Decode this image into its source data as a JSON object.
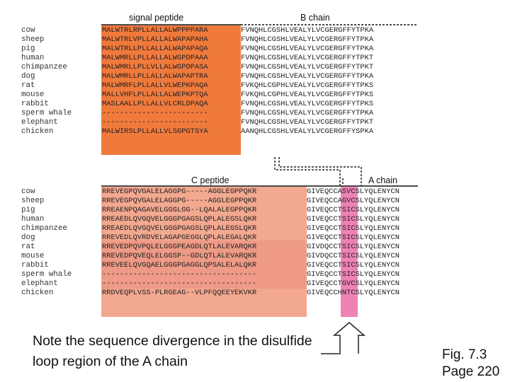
{
  "headers": {
    "signal_peptide": "signal peptide",
    "b_chain": "B chain",
    "c_peptide": "C peptide",
    "a_chain": "A chain"
  },
  "colors": {
    "signal_bg": "#f07a3c",
    "c_peptide_bg": "#f3a890",
    "c_peptide_bg_dark": "#ee8c78",
    "disulfide_bg": "#ee82b4"
  },
  "top_block": [
    {
      "species": "cow",
      "signal": "MALWTRLRPLLALLALWPPPPARA",
      "b": "FVNQHLCGSHLVEALYLVCGERGFFYTPKA"
    },
    {
      "species": "sheep",
      "signal": "MALWTRLVPLLALLALWAPAPAHA",
      "b": "FVNQHLCGSHLVEALYLVCGERGFFYTPKA"
    },
    {
      "species": "pig",
      "signal": "MALWTRLLPLLALLALWAPAPAQA",
      "b": "FVNQHLCGSHLVEALYLVCGERGFFYTPKA"
    },
    {
      "species": "human",
      "signal": "MALWMRLLPLLALLALWGPDPAAA",
      "b": "FVNQHLCGSHLVEALYLVCGERGFFYTPKT"
    },
    {
      "species": "chimpanzee",
      "signal": "MALWMRLLPLLVLLALWGPDPASA",
      "b": "FVNQHLCGSHLVEALYLVCGERGFFYTPKT"
    },
    {
      "species": "dog",
      "signal": "MALWMRLLPLLALLALWAPAPTRA",
      "b": "FVNQHLCGSHLVEALYLVCGERGFFYTPKA"
    },
    {
      "species": "rat",
      "signal": "MALWMRFLPLLALLVLWEPKPAQA",
      "b": "FVKQHLCGPHLVEALYLVCGERGFFYTPKS"
    },
    {
      "species": "mouse",
      "signal": "MALLVHFLPLLALLALWEPKPTQA",
      "b": "FVKQHLCGPHLVEALYLVCGERGFFYTPKS"
    },
    {
      "species": "rabbit",
      "signal": "MASLAALLPLLALLVLCRLDPAQA",
      "b": "FVNQHLCGSHLVEALYLVCGERGFFYTPKS"
    },
    {
      "species": "sperm whale",
      "signal": "------------------------",
      "b": "FVNQHLCGSHLVEALYLVCGERGFFYTPKA"
    },
    {
      "species": "elephant",
      "signal": "------------------------",
      "b": "FVNQHLCGSHLVEALYLVCGERGFFYTPKT"
    },
    {
      "species": "chicken",
      "signal": "MALWIRSLPLLALLVLSGPGTSYA",
      "b": "AANQHLCGSHLVEALYLVCGERGFFYSPKA"
    }
  ],
  "bottom_block": [
    {
      "species": "cow",
      "c": "RREVEGPQVGALELAGGPG-----AGGLEGPPQKR",
      "a": "GIVEQCCASVCSLYQLENYCN"
    },
    {
      "species": "sheep",
      "c": "RREVEGPQVGALELAGGPG-----AGGLEGPPQKR",
      "a": "GIVEQCCAGVCSLYQLENYCN"
    },
    {
      "species": "pig",
      "c": "RREAENPQAGAVELGGGLGG--LQALALEGPPQKR",
      "a": "GIVEQCCTSICSLYQLENYCN"
    },
    {
      "species": "human",
      "c": "RREAEDLQVGQVELGGGPGAGSLQPLALEGSLQKR",
      "a": "GIVEQCCTSICSLYQLENYCN"
    },
    {
      "species": "chimpanzee",
      "c": "RREAEDLQVGQVELGGGPGAGSLQPLALEGSLQKR",
      "a": "GIVEQCCTSICSLYQLENYCN"
    },
    {
      "species": "dog",
      "c": "RREVEDLQVRDVELAGAPGEGGLQPLALEGALQKR",
      "a": "GIVEQCCTSICSLYQLENYCN"
    },
    {
      "species": "rat",
      "c": "RREVEDPQVPQLELGGGPEAGDLQTLALEVARQKR",
      "a": "GIVDQCCTSICSLYQLENYCN"
    },
    {
      "species": "mouse",
      "c": "RREVEDPQVEQLELGGSP--GDLQTLALEVARQKR",
      "a": "GIVDQCCTSICSLYQLENYCN"
    },
    {
      "species": "rabbit",
      "c": "RREVEELQVGQAELGGGPGAGGLQPSALELALQKR",
      "a": "GIVEQCCTSICSLYQLENYCN"
    },
    {
      "species": "sperm whale",
      "c": "-----------------------------------",
      "a": "GIVEQCCTSICSLYQLENYCN"
    },
    {
      "species": "elephant",
      "c": "-----------------------------------",
      "a": "GIVEQCCTGVCSLYQLENYCN"
    },
    {
      "species": "chicken",
      "c": "RRDVEQPLVSS-PLRGEAG--VLPFQQEEYEKVKR",
      "a": "GIVEQCCHNTCSLYQLENYCN"
    }
  ],
  "caption": "Note the sequence divergence in the disulfide loop region of the A chain",
  "figure_ref": {
    "line1": "Fig. 7.3",
    "line2": "Page 220"
  }
}
